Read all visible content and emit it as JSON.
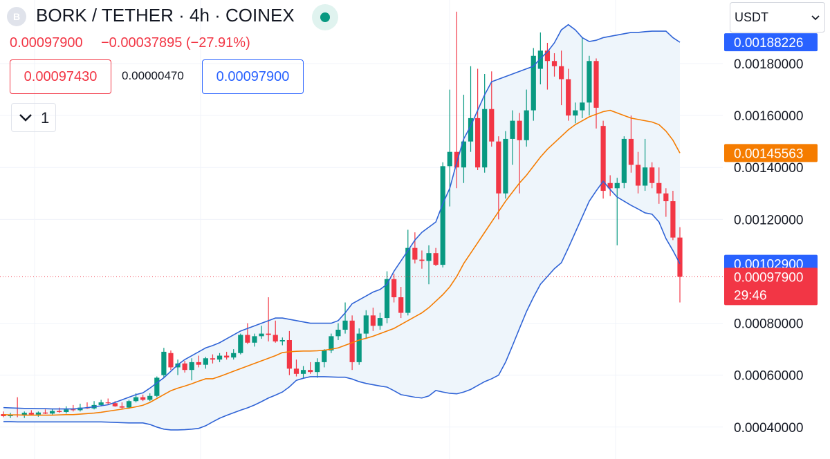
{
  "header": {
    "logo": "B",
    "title": "BORK / TETHER · 4h · COINEX",
    "price": "0.00097900",
    "change": "−0.00037895 (−27.91%)",
    "bid": "0.00097430",
    "spread": "0.00000470",
    "ask": "0.00097900",
    "indicators": "1",
    "currency": "USDT"
  },
  "chart_data": {
    "type": "candlestick",
    "up_color": "#089981",
    "down_color": "#f23645",
    "ylim": [
      0.000277,
      0.002045
    ],
    "yticks": [
      {
        "value": 0.0004,
        "label": "0.00040000"
      },
      {
        "value": 0.0006,
        "label": "0.00060000"
      },
      {
        "value": 0.0008,
        "label": "0.00080000"
      },
      {
        "value": 0.0012,
        "label": "0.00120000"
      },
      {
        "value": 0.0014,
        "label": "0.00140000"
      },
      {
        "value": 0.0016,
        "label": "0.00160000"
      },
      {
        "value": 0.0018,
        "label": "0.00180000"
      }
    ],
    "grid": true,
    "open": [
      0.00045,
      0.000442,
      0.000448,
      0.000445,
      0.000455,
      0.000448,
      0.000456,
      0.000452,
      0.000462,
      0.000458,
      0.000468,
      0.000465,
      0.000475,
      0.000472,
      0.000485,
      0.000495,
      0.000492,
      0.00048,
      0.000475,
      0.0005,
      0.000515,
      0.000505,
      0.00052,
      0.0006,
      0.000685,
      0.00063,
      0.000645,
      0.00062,
      0.00065,
      0.00064,
      0.000665,
      0.00066,
      0.000675,
      0.000668,
      0.000685,
      0.000755,
      0.000725,
      0.00075,
      0.00076,
      0.000755,
      0.00073,
      0.000735,
      0.000625,
      0.000605,
      0.00062,
      0.000612,
      0.00065,
      0.000695,
      0.00075,
      0.000775,
      0.00081,
      0.00065,
      0.00076,
      0.00083,
      0.00079,
      0.00082,
      0.00097,
      0.0009,
      0.00084,
      0.00109,
      0.001045,
      0.00104,
      0.00107,
      0.001025,
      0.001405,
      0.00146,
      0.0014,
      0.0015,
      0.00159,
      0.0014,
      0.001625,
      0.0015,
      0.0013,
      0.00151,
      0.00158,
      0.001505,
      0.00162,
      0.00178,
      0.00185,
      0.00181,
      0.00179,
      0.00174,
      0.0016,
      0.00162,
      0.00165,
      0.00181,
      0.00156,
      0.00134,
      0.00132,
      0.00134,
      0.00151,
      0.00141,
      0.00133,
      0.0014,
      0.00134,
      0.0013,
      0.00127,
      0.00113
    ],
    "high": [
      0.00046,
      0.000455,
      0.000515,
      0.00046,
      0.000465,
      0.00046,
      0.000468,
      0.00047,
      0.000475,
      0.00048,
      0.000485,
      0.00049,
      0.000495,
      0.0005,
      0.000505,
      0.00051,
      0.0005,
      0.000495,
      0.000505,
      0.00053,
      0.000525,
      0.00053,
      0.000595,
      0.000705,
      0.000695,
      0.00066,
      0.000655,
      0.000665,
      0.000675,
      0.00067,
      0.00068,
      0.000685,
      0.00069,
      0.0007,
      0.00076,
      0.0008,
      0.00076,
      0.00079,
      0.0009,
      0.00081,
      0.000745,
      0.00077,
      0.00066,
      0.000635,
      0.00065,
      0.000665,
      0.0007,
      0.00076,
      0.0008,
      0.00088,
      0.00083,
      0.00078,
      0.00085,
      0.00086,
      0.00084,
      0.001,
      0.00099,
      0.00094,
      0.00116,
      0.00115,
      0.00108,
      0.0011,
      0.00109,
      0.00142,
      0.0017,
      0.002,
      0.00168,
      0.00179,
      0.00178,
      0.00176,
      0.00177,
      0.00152,
      0.00154,
      0.00162,
      0.00161,
      0.0017,
      0.00186,
      0.00192,
      0.00188,
      0.00184,
      0.00185,
      0.00178,
      0.00165,
      0.0019,
      0.00183,
      0.00182,
      0.00158,
      0.00137,
      0.00136,
      0.00152,
      0.0016,
      0.00146,
      0.00151,
      0.00142,
      0.0014,
      0.00132,
      0.00131,
      0.00117
    ],
    "low": [
      0.000438,
      0.000435,
      0.000438,
      0.000435,
      0.000445,
      0.00044,
      0.00045,
      0.000448,
      0.000455,
      0.000452,
      0.00046,
      0.00046,
      0.00047,
      0.000468,
      0.00048,
      0.000485,
      0.000478,
      0.00047,
      0.00047,
      0.000495,
      0.0005,
      0.0005,
      0.000515,
      0.00059,
      0.00062,
      0.0006,
      0.00061,
      0.00058,
      0.00063,
      0.000625,
      0.000645,
      0.00065,
      0.00066,
      0.00066,
      0.00068,
      0.00072,
      0.00071,
      0.00074,
      0.00073,
      0.000725,
      0.000715,
      0.0006,
      0.000595,
      0.00059,
      0.000605,
      0.00059,
      0.00063,
      0.000685,
      0.000735,
      0.00076,
      0.00062,
      0.00064,
      0.00074,
      0.00077,
      0.000775,
      0.0008,
      0.00088,
      0.00082,
      0.00083,
      0.00103,
      0.00101,
      0.00095,
      0.00102,
      0.001015,
      0.00125,
      0.00132,
      0.00134,
      0.00146,
      0.00139,
      0.00138,
      0.00148,
      0.0012,
      0.00128,
      0.00141,
      0.0013,
      0.00148,
      0.00158,
      0.00172,
      0.0017,
      0.00175,
      0.00164,
      0.00158,
      0.00157,
      0.00159,
      0.0016,
      0.00155,
      0.00128,
      0.00129,
      0.0011,
      0.00132,
      0.00138,
      0.0013,
      0.00131,
      0.00132,
      0.00126,
      0.00121,
      0.00112,
      0.00088
    ],
    "close": [
      0.000442,
      0.000448,
      0.000445,
      0.000455,
      0.000448,
      0.000456,
      0.000452,
      0.000462,
      0.000458,
      0.000468,
      0.000465,
      0.000475,
      0.000472,
      0.000485,
      0.000495,
      0.000492,
      0.00048,
      0.000475,
      0.0005,
      0.000515,
      0.000505,
      0.00052,
      0.00059,
      0.00069,
      0.00063,
      0.000645,
      0.00062,
      0.00065,
      0.00064,
      0.000665,
      0.00066,
      0.000675,
      0.000668,
      0.000685,
      0.000755,
      0.000725,
      0.00075,
      0.00076,
      0.000755,
      0.00073,
      0.000735,
      0.000625,
      0.000605,
      0.00062,
      0.000612,
      0.00065,
      0.000695,
      0.00075,
      0.000775,
      0.00081,
      0.00065,
      0.00076,
      0.00083,
      0.00079,
      0.00082,
      0.00097,
      0.0009,
      0.00084,
      0.00109,
      0.001045,
      0.00104,
      0.00107,
      0.001025,
      0.001405,
      0.00146,
      0.0014,
      0.0015,
      0.00159,
      0.0014,
      0.001625,
      0.0015,
      0.0013,
      0.00151,
      0.00158,
      0.001505,
      0.00162,
      0.00183,
      0.00185,
      0.00181,
      0.00179,
      0.00174,
      0.0016,
      0.00162,
      0.00165,
      0.00181,
      0.00163,
      0.00131,
      0.00132,
      0.00134,
      0.00151,
      0.00141,
      0.00133,
      0.0014,
      0.00134,
      0.0013,
      0.00127,
      0.00113,
      0.000979
    ],
    "lines": [
      {
        "color": "#2f63d6",
        "values": [
          0.000475,
          0.000474,
          0.000473,
          0.000472,
          0.000472,
          0.000471,
          0.000471,
          0.00047,
          0.00047,
          0.00047,
          0.00047,
          0.000472,
          0.000475,
          0.000478,
          0.000482,
          0.000486,
          0.000495,
          0.000505,
          0.000515,
          0.000525,
          0.000532,
          0.00055,
          0.00057,
          0.00059,
          0.000615,
          0.00064,
          0.00066,
          0.000675,
          0.00069,
          0.000705,
          0.000714,
          0.000725,
          0.00074,
          0.000755,
          0.00077,
          0.00078,
          0.00079,
          0.0008,
          0.00081,
          0.00082,
          0.00082,
          0.000815,
          0.00081,
          0.000805,
          0.0008,
          0.0008,
          0.0008,
          0.0008,
          0.00081,
          0.00084,
          0.000875,
          0.00089,
          0.000905,
          0.00092,
          0.00093,
          0.00095,
          0.001,
          0.00104,
          0.00108,
          0.00112,
          0.00115,
          0.00117,
          0.00119,
          0.00126,
          0.00132,
          0.00142,
          0.00151,
          0.00156,
          0.00162,
          0.00168,
          0.00173,
          0.00174,
          0.00175,
          0.00176,
          0.00177,
          0.00178,
          0.00179,
          0.00182,
          0.001845,
          0.00188,
          0.00193,
          0.00195,
          0.00193,
          0.0019,
          0.001885,
          0.00189,
          0.0019,
          0.001905,
          0.00191,
          0.001915,
          0.00192,
          0.00192,
          0.001923,
          0.001925,
          0.001925,
          0.001925,
          0.0019,
          0.00188226
        ]
      },
      {
        "color": "#f57c00",
        "values": [
          0.000448,
          0.000447,
          0.000447,
          0.000446,
          0.000446,
          0.000446,
          0.000446,
          0.000446,
          0.000447,
          0.000448,
          0.000448,
          0.00045,
          0.000452,
          0.000454,
          0.000457,
          0.000461,
          0.000465,
          0.000469,
          0.000473,
          0.000478,
          0.000484,
          0.000495,
          0.00051,
          0.000525,
          0.00054,
          0.00055,
          0.000558,
          0.000567,
          0.000577,
          0.000586,
          0.000586,
          0.000595,
          0.000605,
          0.000615,
          0.000625,
          0.000635,
          0.000645,
          0.000655,
          0.000665,
          0.000675,
          0.000687,
          0.00069,
          0.000692,
          0.000693,
          0.000693,
          0.000694,
          0.000696,
          0.0007,
          0.000705,
          0.000715,
          0.000725,
          0.000735,
          0.000742,
          0.00075,
          0.00076,
          0.00077,
          0.00078,
          0.000795,
          0.00081,
          0.000825,
          0.00084,
          0.00086,
          0.000885,
          0.00091,
          0.00094,
          0.00098,
          0.00103,
          0.00107,
          0.00111,
          0.00115,
          0.00119,
          0.00123,
          0.00127,
          0.001305,
          0.00134,
          0.00137,
          0.001405,
          0.00144,
          0.00147,
          0.001495,
          0.00152,
          0.001545,
          0.001565,
          0.00158,
          0.001595,
          0.001605,
          0.001615,
          0.00162,
          0.00161,
          0.0016,
          0.00159,
          0.001585,
          0.00158,
          0.001575,
          0.001565,
          0.00154,
          0.001505,
          0.00145563
        ]
      },
      {
        "color": "#2f63d6",
        "values": [
          0.000421,
          0.000421,
          0.00042,
          0.00042,
          0.00042,
          0.00042,
          0.00042,
          0.00042,
          0.00042,
          0.00042,
          0.00042,
          0.00042,
          0.00042,
          0.00042,
          0.00042,
          0.000419,
          0.000418,
          0.000417,
          0.000416,
          0.000416,
          0.000416,
          0.00041,
          0.0004,
          0.000392,
          0.000389,
          0.000389,
          0.00039,
          0.000392,
          0.000395,
          0.000405,
          0.00042,
          0.000434,
          0.000445,
          0.000455,
          0.000465,
          0.000474,
          0.000485,
          0.000498,
          0.000512,
          0.000523,
          0.000535,
          0.000555,
          0.00058,
          0.000588,
          0.000594,
          0.000594,
          0.000594,
          0.000593,
          0.000592,
          0.000592,
          0.000585,
          0.000575,
          0.000568,
          0.000563,
          0.000558,
          0.000554,
          0.00054,
          0.000525,
          0.00052,
          0.000515,
          0.000512,
          0.00052,
          0.000541,
          0.000535,
          0.00053,
          0.000528,
          0.000535,
          0.000545,
          0.00056,
          0.000575,
          0.000586,
          0.0006,
          0.00065,
          0.000714,
          0.00078,
          0.000845,
          0.0009,
          0.00095,
          0.00098,
          0.00101,
          0.001033,
          0.00109,
          0.00115,
          0.00121,
          0.00127,
          0.00131,
          0.001347,
          0.001315,
          0.001286,
          0.00127,
          0.001254,
          0.00124,
          0.001225,
          0.00122,
          0.00119,
          0.001126,
          0.00108,
          0.001029
        ]
      }
    ],
    "band_fill": "#eef5fb",
    "price_tags": [
      {
        "value": 0.00188226,
        "color": "#2962ff"
      },
      {
        "value": 0.00145563,
        "color": "#f57c00"
      },
      {
        "value": 0.001029,
        "label": "0.00102900",
        "color": "#2962ff"
      },
      {
        "value": 0.000979,
        "label": "0.00097900",
        "color": "#f23645"
      }
    ],
    "countdown": "29:46"
  }
}
